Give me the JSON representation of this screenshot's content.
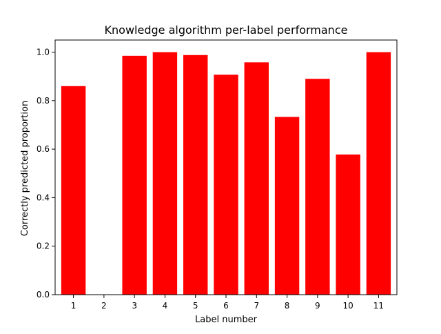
{
  "chart_data": {
    "type": "bar",
    "title": "Knowledge algorithm per-label performance",
    "xlabel": "Label number",
    "ylabel": "Correctly predicted proportion",
    "categories": [
      "1",
      "2",
      "3",
      "4",
      "5",
      "6",
      "7",
      "8",
      "9",
      "10",
      "11"
    ],
    "values": [
      0.86,
      0.0,
      0.985,
      1.0,
      0.988,
      0.907,
      0.958,
      0.733,
      0.89,
      0.578,
      1.0
    ],
    "yticks": [
      "0.0",
      "0.2",
      "0.4",
      "0.6",
      "0.8",
      "1.0"
    ],
    "ylim": [
      0,
      1.05
    ],
    "grid": false,
    "legend": "none",
    "bar_color": "#ff0000"
  }
}
